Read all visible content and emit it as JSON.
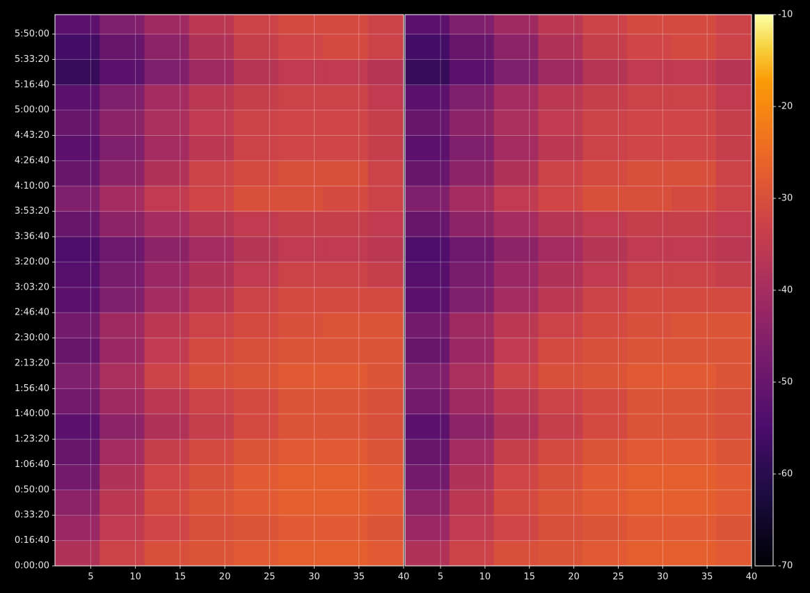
{
  "chart_data": [
    {
      "type": "heatmap",
      "colormap": "inferno",
      "grid": true,
      "xlim": [
        1,
        40
      ],
      "xticks": [
        5,
        10,
        15,
        20,
        25,
        30,
        35,
        40
      ],
      "ylim": [
        0,
        21770
      ],
      "yticks": [
        {
          "value": 0,
          "label": "0:00:00"
        },
        {
          "value": 1000,
          "label": "0:16:40"
        },
        {
          "value": 2000,
          "label": "0:33:20"
        },
        {
          "value": 3000,
          "label": "0:50:00"
        },
        {
          "value": 4000,
          "label": "1:06:40"
        },
        {
          "value": 5000,
          "label": "1:23:20"
        },
        {
          "value": 6000,
          "label": "1:40:00"
        },
        {
          "value": 7000,
          "label": "1:56:40"
        },
        {
          "value": 8000,
          "label": "2:13:20"
        },
        {
          "value": 9000,
          "label": "2:30:00"
        },
        {
          "value": 10000,
          "label": "2:46:40"
        },
        {
          "value": 11000,
          "label": "3:03:20"
        },
        {
          "value": 12000,
          "label": "3:20:00"
        },
        {
          "value": 13000,
          "label": "3:36:40"
        },
        {
          "value": 14000,
          "label": "3:53:20"
        },
        {
          "value": 15000,
          "label": "4:10:00"
        },
        {
          "value": 16000,
          "label": "4:26:40"
        },
        {
          "value": 17000,
          "label": "4:43:20"
        },
        {
          "value": 18000,
          "label": "5:00:00"
        },
        {
          "value": 19000,
          "label": "5:16:40"
        },
        {
          "value": 20000,
          "label": "5:33:20"
        },
        {
          "value": 21000,
          "label": "5:50:00"
        }
      ],
      "zlim": [
        -70,
        -10
      ],
      "x_edges": [
        1,
        6,
        11,
        16,
        21,
        26,
        31,
        36,
        40
      ],
      "y_edges": [
        0,
        1000,
        2000,
        3000,
        4000,
        5000,
        6000,
        7000,
        8000,
        9000,
        10000,
        11000,
        12000,
        13000,
        14000,
        15000,
        16000,
        17000,
        18000,
        19000,
        20000,
        21000,
        21770
      ],
      "z": [
        [
          -38,
          -33,
          -30,
          -29,
          -28,
          -27,
          -27,
          -28
        ],
        [
          -42,
          -35,
          -32,
          -30,
          -29,
          -28,
          -28,
          -29
        ],
        [
          -44,
          -36,
          -31,
          -29,
          -28,
          -27,
          -27,
          -28
        ],
        [
          -48,
          -38,
          -32,
          -30,
          -28,
          -27,
          -27,
          -28
        ],
        [
          -50,
          -40,
          -34,
          -31,
          -29,
          -28,
          -28,
          -29
        ],
        [
          -52,
          -44,
          -38,
          -34,
          -31,
          -29,
          -29,
          -30
        ],
        [
          -48,
          -41,
          -36,
          -33,
          -31,
          -29,
          -29,
          -30
        ],
        [
          -46,
          -39,
          -33,
          -30,
          -29,
          -28,
          -28,
          -29
        ],
        [
          -50,
          -42,
          -35,
          -31,
          -30,
          -29,
          -29,
          -29
        ],
        [
          -48,
          -41,
          -36,
          -33,
          -31,
          -30,
          -29,
          -29
        ],
        [
          -52,
          -46,
          -40,
          -36,
          -33,
          -31,
          -31,
          -31
        ],
        [
          -53,
          -47,
          -42,
          -38,
          -35,
          -33,
          -33,
          -34
        ],
        [
          -54,
          -49,
          -44,
          -40,
          -37,
          -35,
          -35,
          -36
        ],
        [
          -50,
          -44,
          -40,
          -37,
          -35,
          -34,
          -34,
          -35
        ],
        [
          -46,
          -40,
          -35,
          -32,
          -30,
          -30,
          -31,
          -33
        ],
        [
          -50,
          -44,
          -38,
          -33,
          -31,
          -30,
          -30,
          -33
        ],
        [
          -52,
          -46,
          -40,
          -36,
          -33,
          -32,
          -32,
          -34
        ],
        [
          -50,
          -44,
          -39,
          -35,
          -33,
          -32,
          -32,
          -34
        ],
        [
          -52,
          -46,
          -40,
          -36,
          -34,
          -33,
          -33,
          -35
        ],
        [
          -58,
          -52,
          -46,
          -41,
          -37,
          -35,
          -35,
          -37
        ],
        [
          -56,
          -50,
          -44,
          -38,
          -34,
          -32,
          -31,
          -33
        ],
        [
          -52,
          -46,
          -41,
          -36,
          -33,
          -31,
          -31,
          -33
        ]
      ]
    },
    {
      "type": "heatmap",
      "colormap": "inferno",
      "grid": true,
      "xlim": [
        1,
        40
      ],
      "xticks": [
        5,
        10,
        15,
        20,
        25,
        30,
        35,
        40
      ],
      "ylim": [
        0,
        21770
      ],
      "yticks": [
        0,
        1000,
        2000,
        3000,
        4000,
        5000,
        6000,
        7000,
        8000,
        9000,
        10000,
        11000,
        12000,
        13000,
        14000,
        15000,
        16000,
        17000,
        18000,
        19000,
        20000,
        21000
      ],
      "zlim": [
        -70,
        -10
      ],
      "zticks": [
        -70,
        -60,
        -50,
        -40,
        -30,
        -20,
        -10
      ],
      "x_edges": [
        1,
        6,
        11,
        16,
        21,
        26,
        31,
        36,
        40
      ],
      "y_edges": [
        0,
        1000,
        2000,
        3000,
        4000,
        5000,
        6000,
        7000,
        8000,
        9000,
        10000,
        11000,
        12000,
        13000,
        14000,
        15000,
        16000,
        17000,
        18000,
        19000,
        20000,
        21000,
        21770
      ],
      "z": [
        [
          -38,
          -33,
          -30,
          -29,
          -28,
          -27,
          -27,
          -28
        ],
        [
          -42,
          -35,
          -32,
          -30,
          -29,
          -28,
          -28,
          -29
        ],
        [
          -44,
          -36,
          -31,
          -29,
          -28,
          -27,
          -27,
          -28
        ],
        [
          -48,
          -38,
          -32,
          -30,
          -28,
          -27,
          -27,
          -28
        ],
        [
          -50,
          -40,
          -34,
          -31,
          -29,
          -28,
          -28,
          -29
        ],
        [
          -52,
          -44,
          -38,
          -34,
          -31,
          -29,
          -29,
          -30
        ],
        [
          -48,
          -41,
          -36,
          -33,
          -31,
          -29,
          -29,
          -30
        ],
        [
          -46,
          -39,
          -33,
          -30,
          -29,
          -28,
          -28,
          -29
        ],
        [
          -50,
          -42,
          -35,
          -31,
          -30,
          -29,
          -29,
          -29
        ],
        [
          -48,
          -41,
          -36,
          -33,
          -31,
          -30,
          -29,
          -29
        ],
        [
          -52,
          -46,
          -40,
          -36,
          -33,
          -31,
          -31,
          -31
        ],
        [
          -53,
          -47,
          -42,
          -38,
          -35,
          -33,
          -33,
          -34
        ],
        [
          -54,
          -49,
          -44,
          -40,
          -37,
          -35,
          -35,
          -36
        ],
        [
          -50,
          -44,
          -40,
          -37,
          -35,
          -34,
          -34,
          -35
        ],
        [
          -46,
          -40,
          -35,
          -32,
          -30,
          -30,
          -31,
          -33
        ],
        [
          -50,
          -44,
          -38,
          -33,
          -31,
          -30,
          -30,
          -33
        ],
        [
          -52,
          -46,
          -40,
          -36,
          -33,
          -32,
          -32,
          -34
        ],
        [
          -50,
          -44,
          -39,
          -35,
          -33,
          -32,
          -32,
          -34
        ],
        [
          -52,
          -46,
          -40,
          -36,
          -34,
          -33,
          -33,
          -35
        ],
        [
          -58,
          -52,
          -46,
          -41,
          -37,
          -35,
          -35,
          -37
        ],
        [
          -56,
          -50,
          -44,
          -38,
          -34,
          -32,
          -31,
          -33
        ],
        [
          -52,
          -46,
          -41,
          -36,
          -33,
          -31,
          -31,
          -33
        ]
      ]
    }
  ]
}
